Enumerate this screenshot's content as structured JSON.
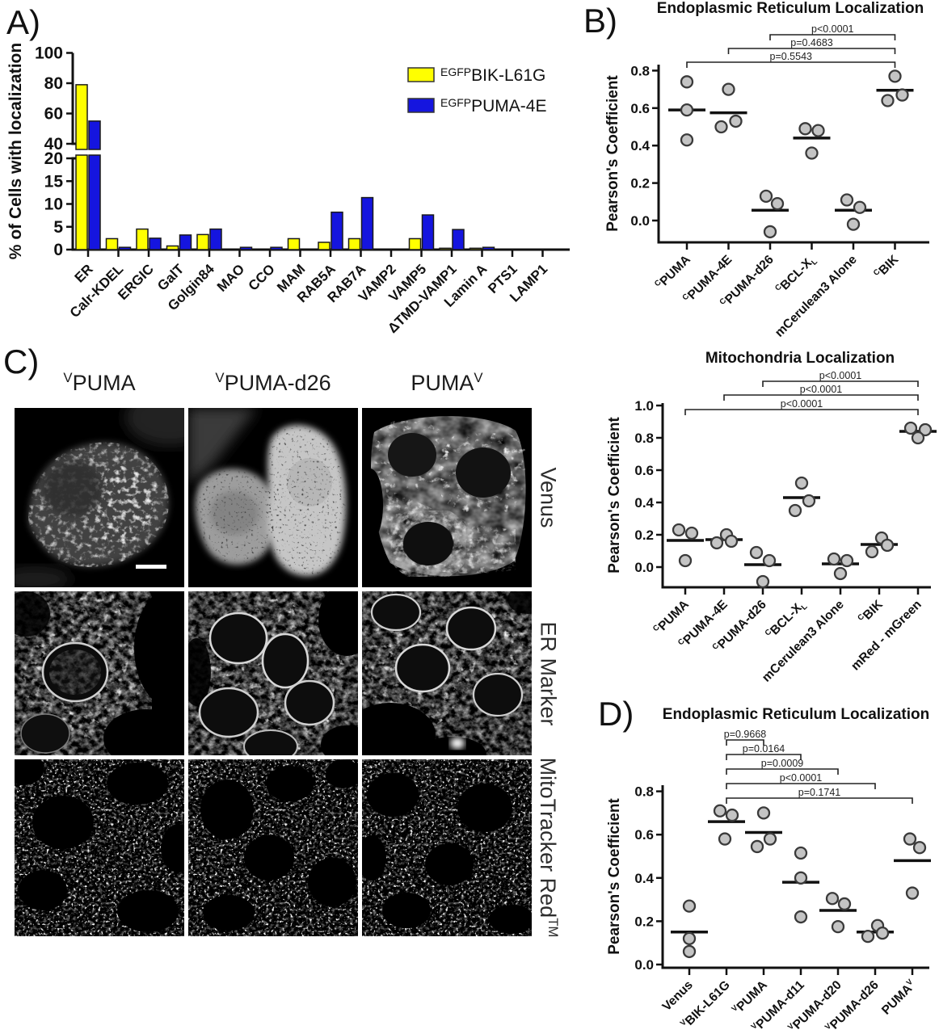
{
  "figure": {
    "panels": {
      "a": "A)",
      "b": "B)",
      "c": "C)",
      "d": "D)"
    }
  },
  "panel_c": {
    "columns": [
      {
        "prefix": "V",
        "name": "PUMA"
      },
      {
        "prefix": "V",
        "name": "PUMA-d26"
      },
      {
        "name": "PUMA",
        "suffix": "V"
      }
    ],
    "rows": [
      {
        "name": "Venus"
      },
      {
        "name": "ER Marker"
      },
      {
        "name": "MitoTracker Red",
        "sup": "TM"
      }
    ]
  },
  "chart_data": [
    {
      "id": "panel-a",
      "type": "bar",
      "title": "",
      "ylabel": "% of Cells with localization",
      "axis_break": {
        "lower_max": 20,
        "upper_min": 40
      },
      "yticks_lower": [
        0,
        5,
        10,
        15,
        20
      ],
      "yticks_upper": [
        40,
        60,
        80,
        100
      ],
      "ylim": [
        0,
        100
      ],
      "categories": [
        "ER",
        "Calr-KDEL",
        "ERGIC",
        "GalT",
        "Golgin84",
        "MAO",
        "CCO",
        "MAM",
        "RAB5A",
        "RAB7A",
        "VAMP2",
        "VAMP5",
        "ΔTMD-VAMP1",
        "Lamin A",
        "PTS1",
        "LAMP1"
      ],
      "series": [
        {
          "name_prefix": "EGFP",
          "name": "BIK-L61G",
          "color": "#FFFF00",
          "values": [
            79,
            2.4,
            4.5,
            0.8,
            3.3,
            0,
            0,
            2.4,
            1.6,
            2.4,
            0,
            2.4,
            0.3,
            0.3,
            0,
            0
          ]
        },
        {
          "name_prefix": "EGFP",
          "name": "PUMA-4E",
          "color": "#1515DF",
          "values": [
            55,
            0.5,
            2.5,
            3.2,
            4.5,
            0.5,
            0.5,
            0,
            8.2,
            11.4,
            0,
            7.6,
            4.4,
            0.5,
            0,
            0
          ]
        }
      ],
      "legend_position": "top-right"
    },
    {
      "id": "panel-b",
      "type": "scatter",
      "title": "Endoplasmic Reticulum Localization",
      "ylabel": "Pearson's Coefficient",
      "ylim": [
        -0.12,
        0.8
      ],
      "yticks": [
        0.0,
        0.2,
        0.4,
        0.6,
        0.8
      ],
      "categories": [
        {
          "prefix": "C",
          "name": "PUMA"
        },
        {
          "prefix": "C",
          "name": "PUMA-4E"
        },
        {
          "prefix": "C",
          "name": "PUMA-d26"
        },
        {
          "prefix": "C",
          "name": "BCL-X",
          "sub": "L"
        },
        {
          "name": "mCerulean3 Alone"
        },
        {
          "prefix": "C",
          "name": "BIK"
        }
      ],
      "points": [
        [
          0.74,
          0.59,
          0.43
        ],
        [
          0.7,
          0.5,
          0.53
        ],
        [
          0.13,
          0.09,
          -0.06
        ],
        [
          0.49,
          0.48,
          0.36
        ],
        [
          0.11,
          0.07,
          -0.02
        ],
        [
          0.77,
          0.64,
          0.67
        ]
      ],
      "jitter": [
        [
          0,
          0,
          0
        ],
        [
          0,
          -9,
          9
        ],
        [
          -5,
          9,
          0
        ],
        [
          -8,
          8,
          0
        ],
        [
          -8,
          8,
          0
        ],
        [
          0,
          -9,
          9
        ]
      ],
      "means": [
        0.59,
        0.575,
        0.055,
        0.44,
        0.055,
        0.695
      ],
      "brackets": [
        {
          "from": 2,
          "to": 5,
          "label": "p<0.0001"
        },
        {
          "from": 1,
          "to": 5,
          "label": "p=0.4683"
        },
        {
          "from": 0,
          "to": 5,
          "label": "p=0.5543"
        }
      ],
      "marker": {
        "fill": "#c4c4c4",
        "stroke": "#3a3a3a"
      }
    },
    {
      "id": "panel-mito",
      "type": "scatter",
      "title": "Mitochondria Localization",
      "ylabel": "Pearson's Coefficient",
      "ylim": [
        -0.12,
        1.0
      ],
      "yticks": [
        0.0,
        0.2,
        0.4,
        0.6,
        0.8,
        1.0
      ],
      "categories": [
        {
          "prefix": "C",
          "name": "PUMA"
        },
        {
          "prefix": "C",
          "name": "PUMA-4E"
        },
        {
          "prefix": "C",
          "name": "PUMA-d26"
        },
        {
          "prefix": "C",
          "name": "BCL-X",
          "sub": "L"
        },
        {
          "name": "mCerulean3 Alone"
        },
        {
          "prefix": "C",
          "name": "BIK"
        },
        {
          "name": "mRed - mGreen"
        }
      ],
      "points": [
        [
          0.23,
          0.21,
          0.04
        ],
        [
          0.2,
          0.15,
          0.16
        ],
        [
          0.09,
          0.04,
          -0.09
        ],
        [
          0.52,
          0.35,
          0.41
        ],
        [
          0.05,
          0.04,
          -0.04
        ],
        [
          0.18,
          0.095,
          0.135
        ],
        [
          0.86,
          0.85,
          0.8
        ]
      ],
      "jitter": [
        [
          -8,
          8,
          0
        ],
        [
          3,
          -9,
          9
        ],
        [
          -8,
          8,
          0
        ],
        [
          0,
          -8,
          9
        ],
        [
          -8,
          8,
          0
        ],
        [
          3,
          -9,
          10
        ],
        [
          -9,
          9,
          0
        ]
      ],
      "means": [
        0.165,
        0.17,
        0.015,
        0.43,
        0.02,
        0.14,
        0.84
      ],
      "brackets": [
        {
          "from": 2,
          "to": 6,
          "label": "p<0.0001"
        },
        {
          "from": 1,
          "to": 6,
          "label": "p<0.0001"
        },
        {
          "from": 0,
          "to": 6,
          "label": "p<0.0001"
        }
      ],
      "marker": {
        "fill": "#c4c4c4",
        "stroke": "#3a3a3a"
      }
    },
    {
      "id": "panel-d",
      "type": "scatter",
      "title": "Endoplasmic Reticulum Localization",
      "ylabel": "Pearson's Coefficient",
      "ylim": [
        0,
        0.8
      ],
      "yticks": [
        0.0,
        0.2,
        0.4,
        0.6,
        0.8
      ],
      "categories": [
        {
          "name": "Venus"
        },
        {
          "prefix": "V",
          "name": "BIK-L61G"
        },
        {
          "prefix": "V",
          "name": "PUMA"
        },
        {
          "prefix": "V",
          "name": "PUMA-d11"
        },
        {
          "prefix": "V",
          "name": "PUMA-d20"
        },
        {
          "prefix": "V",
          "name": "PUMA-d26"
        },
        {
          "name": "PUMA",
          "suffix": "V"
        }
      ],
      "points": [
        [
          0.27,
          0.12,
          0.06
        ],
        [
          0.71,
          0.69,
          0.58
        ],
        [
          0.7,
          0.545,
          0.58
        ],
        [
          0.515,
          0.4,
          0.22
        ],
        [
          0.305,
          0.28,
          0.175
        ],
        [
          0.18,
          0.13,
          0.145
        ],
        [
          0.58,
          0.54,
          0.33
        ]
      ],
      "jitter": [
        [
          0,
          0,
          0
        ],
        [
          -8,
          7,
          -2
        ],
        [
          0,
          -8,
          8
        ],
        [
          0,
          0,
          0
        ],
        [
          -7,
          8,
          0
        ],
        [
          3,
          -9,
          9
        ],
        [
          -3,
          9,
          0
        ]
      ],
      "means": [
        0.15,
        0.66,
        0.61,
        0.38,
        0.25,
        0.15,
        0.48
      ],
      "brackets": [
        {
          "from": 1,
          "to": 2,
          "label": "p=0.9668"
        },
        {
          "from": 1,
          "to": 3,
          "label": "p=0.0164"
        },
        {
          "from": 1,
          "to": 4,
          "label": "p=0.0009"
        },
        {
          "from": 1,
          "to": 5,
          "label": "p<0.0001"
        },
        {
          "from": 1,
          "to": 6,
          "label": "p=0.1741"
        }
      ],
      "marker": {
        "fill": "#c4c4c4",
        "stroke": "#3a3a3a"
      }
    }
  ]
}
